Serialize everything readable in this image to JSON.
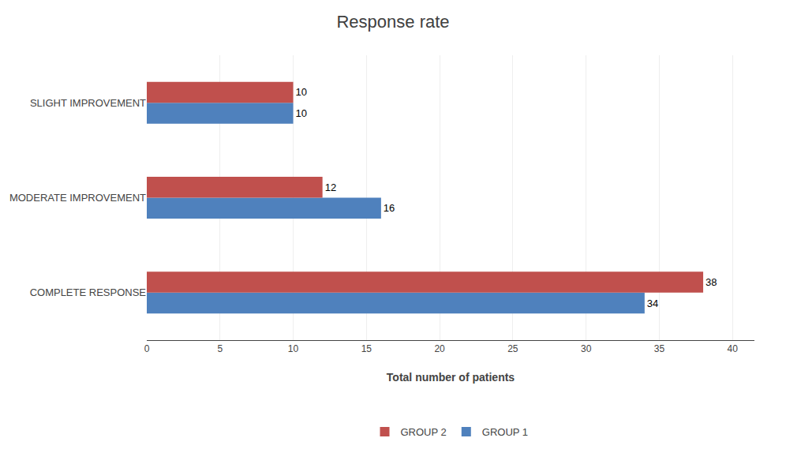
{
  "chart_data": {
    "type": "bar",
    "orientation": "horizontal",
    "title": "Response rate",
    "categories": [
      "COMPLETE RESPONSE",
      "MODERATE IMPROVEMENT",
      "SLIGHT IMPROVEMENT"
    ],
    "series": [
      {
        "name": "GROUP 2",
        "color": "#c0504d",
        "values": [
          38,
          12,
          10
        ]
      },
      {
        "name": "GROUP 1",
        "color": "#4f81bd",
        "values": [
          34,
          16,
          10
        ]
      }
    ],
    "xlabel": "Total number of patients",
    "xlim": [
      0,
      41.5
    ],
    "xticks": [
      0,
      5,
      10,
      15,
      20,
      25,
      30,
      35,
      40
    ],
    "grid": true,
    "data_labels": true,
    "legend": "bottom"
  }
}
